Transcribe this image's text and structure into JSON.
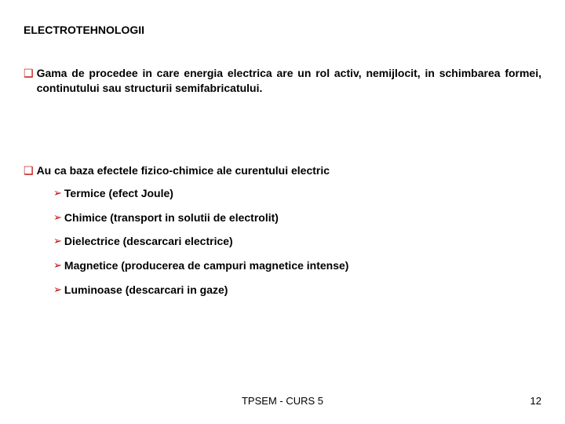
{
  "title": "ELECTROTEHNOLOGII",
  "colors": {
    "bullet_square": "#c00000",
    "bullet_triangle": "#c00000",
    "text": "#000000",
    "background": "#ffffff"
  },
  "fonts": {
    "title_size": 14,
    "body_size": 14,
    "sub_size": 14,
    "footer_size": 13,
    "family": "Arial"
  },
  "paragraphs": [
    {
      "text": "Gama de procedee in care energia electrica are un rol activ, nemijlocit, in schimbarea formei, continutului sau structurii semifabricatului."
    },
    {
      "text": "Au ca baza efectele fizico-chimice ale curentului electric"
    }
  ],
  "sub_items": [
    "Termice (efect Joule)",
    "Chimice (transport in solutii de electrolit)",
    "Dielectrice (descarcari electrice)",
    "Magnetice (producerea de campuri magnetice intense)",
    "Luminoase (descarcari in gaze)"
  ],
  "footer": "TPSEM - CURS 5",
  "page_number": "12",
  "markers": {
    "square": "❑",
    "triangle": "➢"
  }
}
